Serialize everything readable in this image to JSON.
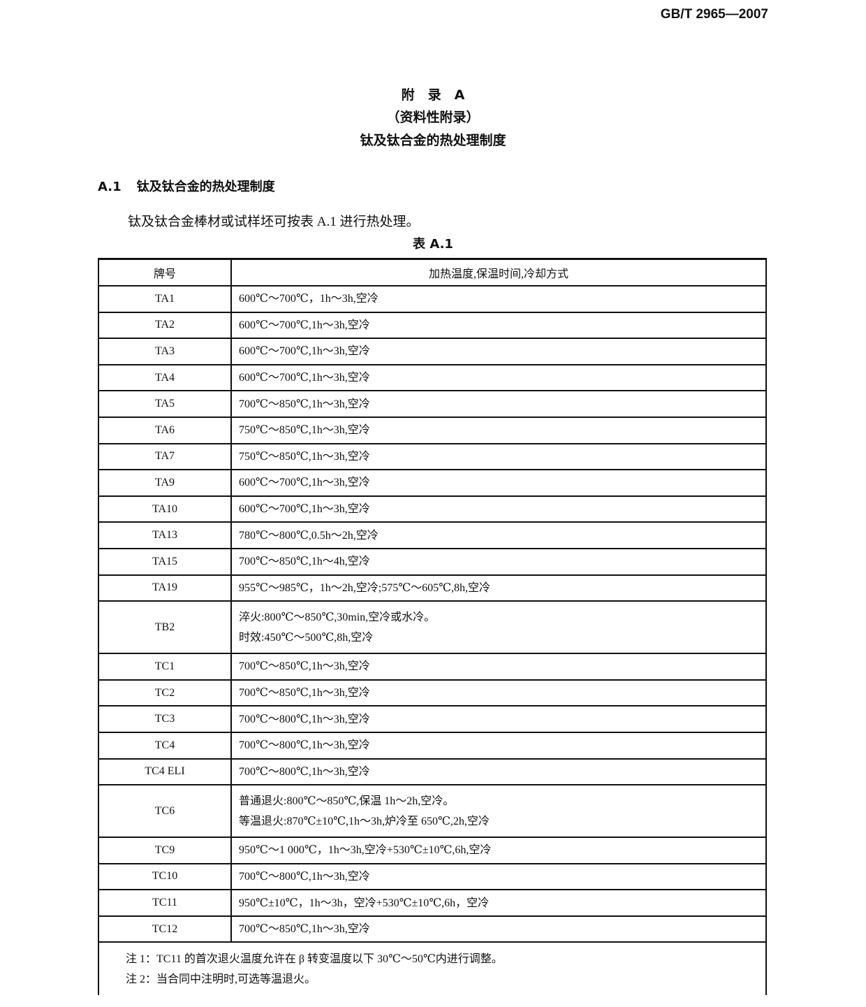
{
  "header": {
    "code": "GB/T 2965—2007"
  },
  "title": {
    "lines": [
      "附　录　A",
      "（资料性附录）",
      "钛及钛合金的热处理制度"
    ]
  },
  "section": {
    "number": "A.1",
    "text": "钛及钛合金的热处理制度"
  },
  "paragraph": "钛及钛合金棒材或试样坯可按表 A.1 进行热处理。",
  "table": {
    "caption": "表 A.1",
    "header": [
      "牌号",
      "加热温度,保温时间,冷却方式"
    ],
    "rows": [
      {
        "grade": "TA1",
        "lines": [
          "600℃～700℃，1h～3h,空冷"
        ]
      },
      {
        "grade": "TA2",
        "lines": [
          "600℃～700℃,1h～3h,空冷"
        ]
      },
      {
        "grade": "TA3",
        "lines": [
          "600℃～700℃,1h～3h,空冷"
        ]
      },
      {
        "grade": "TA4",
        "lines": [
          "600℃～700℃,1h～3h,空冷"
        ]
      },
      {
        "grade": "TA5",
        "lines": [
          "700℃～850℃,1h～3h,空冷"
        ]
      },
      {
        "grade": "TA6",
        "lines": [
          "750℃～850℃,1h～3h,空冷"
        ]
      },
      {
        "grade": "TA7",
        "lines": [
          "750℃～850℃,1h～3h,空冷"
        ]
      },
      {
        "grade": "TA9",
        "lines": [
          "600℃～700℃,1h～3h,空冷"
        ]
      },
      {
        "grade": "TA10",
        "lines": [
          "600℃～700℃,1h～3h,空冷"
        ]
      },
      {
        "grade": "TA13",
        "lines": [
          "780℃～800℃,0.5h～2h,空冷"
        ]
      },
      {
        "grade": "TA15",
        "lines": [
          "700℃～850℃,1h～4h,空冷"
        ]
      },
      {
        "grade": "TA19",
        "lines": [
          "955℃～985℃，1h～2h,空冷;575℃～605℃,8h,空冷"
        ]
      },
      {
        "grade": "TB2",
        "lines": [
          "淬火:800℃～850℃,30min,空冷或水冷。",
          "时效:450℃～500℃,8h,空冷"
        ]
      },
      {
        "grade": "TC1",
        "lines": [
          "700℃～850℃,1h～3h,空冷"
        ]
      },
      {
        "grade": "TC2",
        "lines": [
          "700℃～850℃,1h～3h,空冷"
        ]
      },
      {
        "grade": "TC3",
        "lines": [
          "700℃～800℃,1h～3h,空冷"
        ]
      },
      {
        "grade": "TC4",
        "lines": [
          "700℃～800℃,1h～3h,空冷"
        ]
      },
      {
        "grade": "TC4 ELI",
        "lines": [
          "700℃～800℃,1h～3h,空冷"
        ]
      },
      {
        "grade": "TC6",
        "lines": [
          "普通退火:800℃～850℃,保温 1h～2h,空冷。",
          "等温退火:870℃±10℃,1h～3h,炉冷至 650℃,2h,空冷"
        ]
      },
      {
        "grade": "TC9",
        "lines": [
          "950℃～1 000℃，1h～3h,空冷+530℃±10℃,6h,空冷"
        ]
      },
      {
        "grade": "TC10",
        "lines": [
          "700℃～800℃,1h～3h,空冷"
        ]
      },
      {
        "grade": "TC11",
        "lines": [
          "950℃±10℃，1h～3h，空冷+530℃±10℃,6h，空冷"
        ]
      },
      {
        "grade": "TC12",
        "lines": [
          "700℃～850℃,1h～3h,空冷"
        ]
      }
    ],
    "notes": [
      "注 1：TC11 的首次退火温度允许在 β 转变温度以下 30℃～50℃内进行调整。",
      "注 2：当合同中注明时,可选等温退火。"
    ]
  }
}
